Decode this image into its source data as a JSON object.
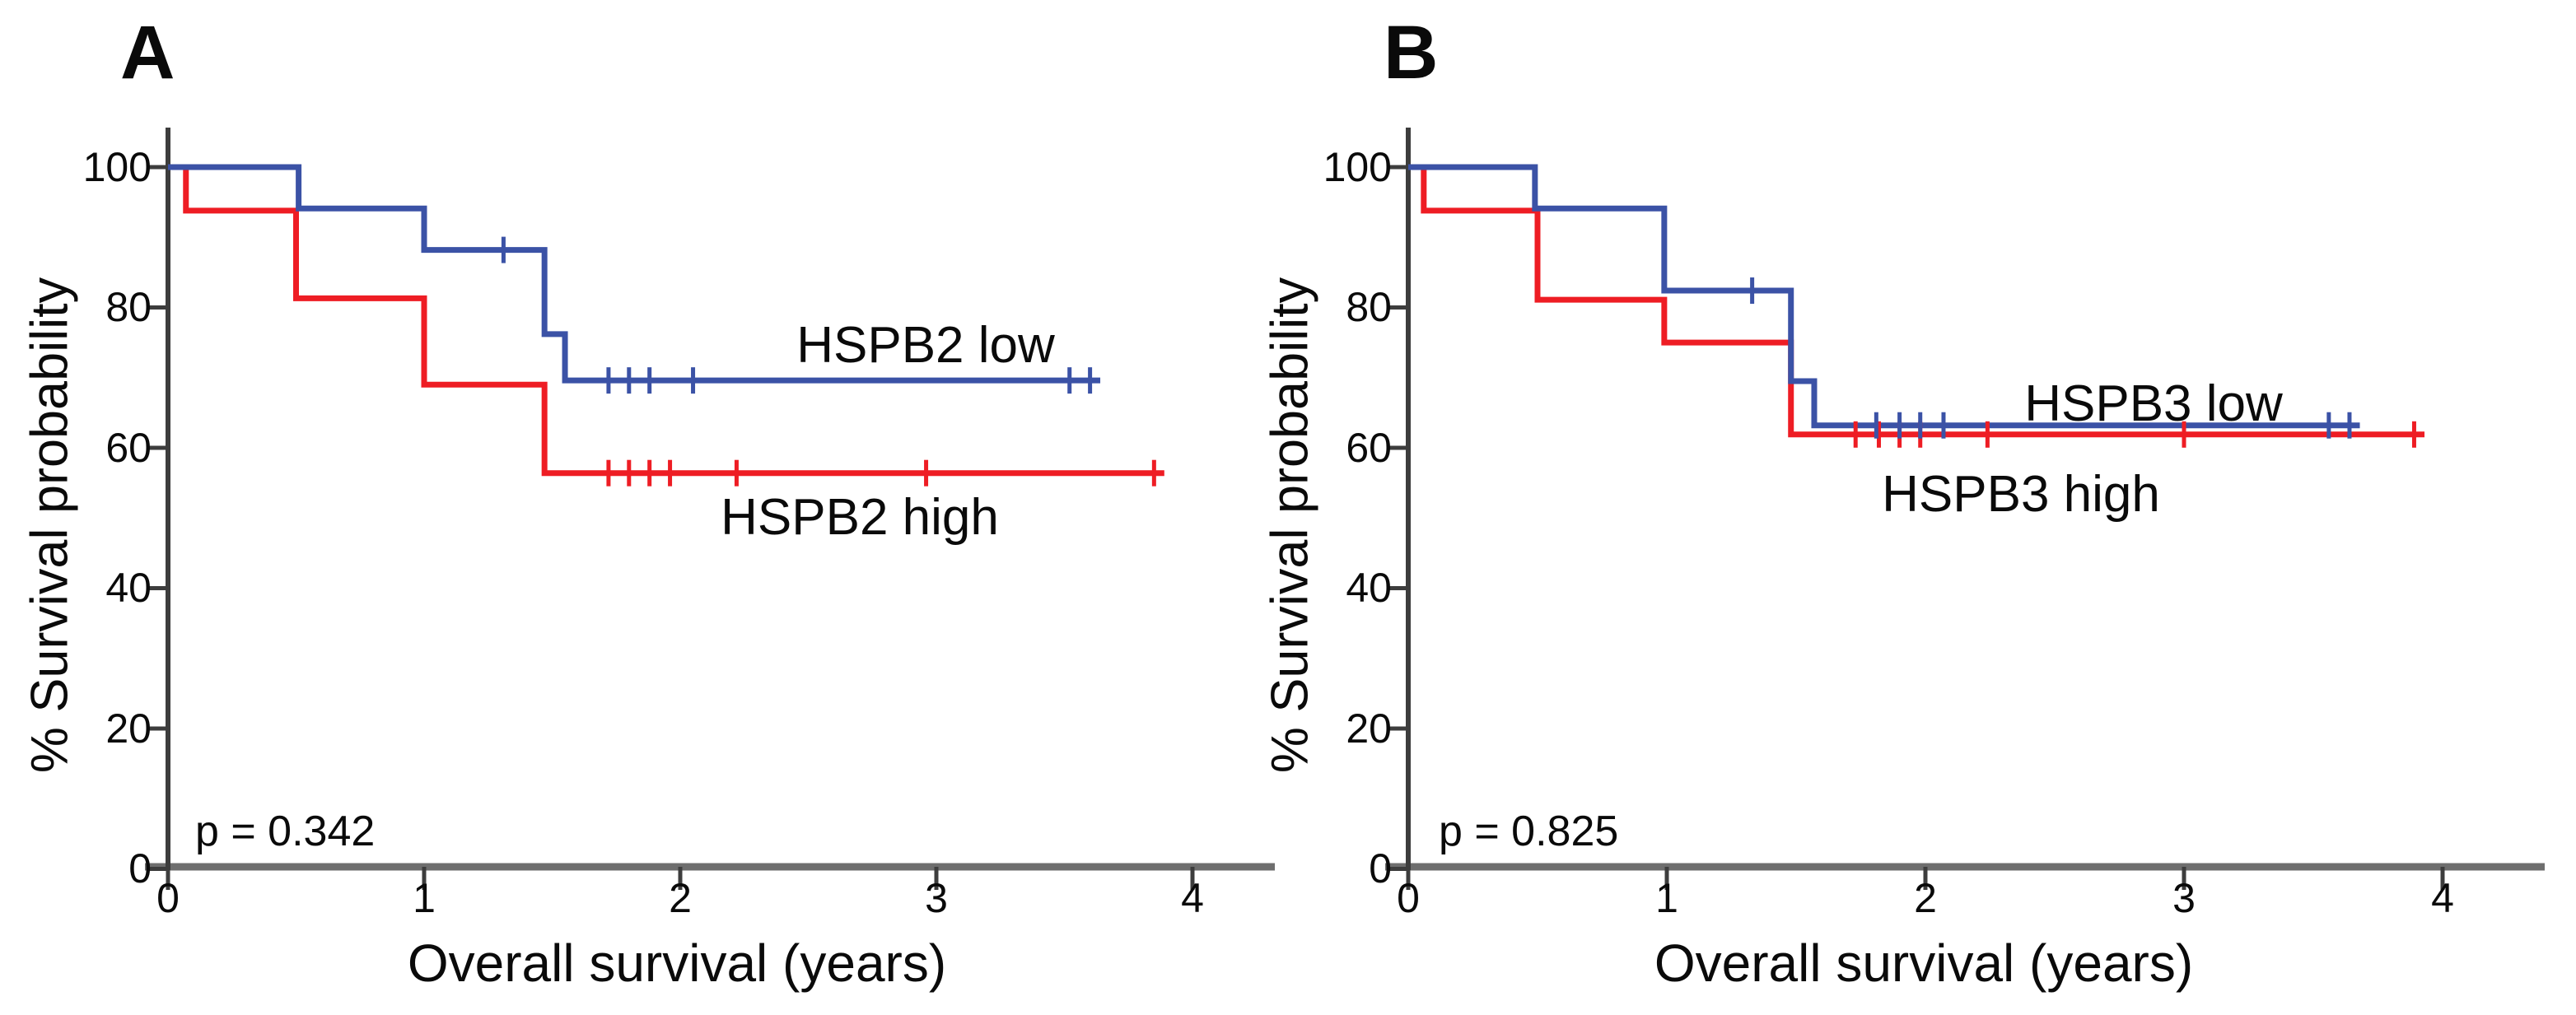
{
  "figure": {
    "background": "#ffffff",
    "accent_colors": {
      "low_group_blue": "#3b52a6",
      "high_group_red": "#ee1d24",
      "axis_dark": "#3d3d3d",
      "axis_baseline_gray": "#6e6e6e"
    }
  },
  "chart_data": [
    {
      "type": "line",
      "subtype": "kaplan_meier_step",
      "title": "A",
      "xlabel": "Overall survival (years)",
      "ylabel": "% Survival probability",
      "xlim": [
        0,
        4.35
      ],
      "ylim": [
        0,
        100
      ],
      "grid": false,
      "legend_position": "inline-annotations",
      "x_ticks": [
        0,
        1,
        2,
        3,
        4
      ],
      "x_tick_labels": [
        "0",
        "1",
        "2",
        "3",
        "4"
      ],
      "y_ticks": [
        100,
        80,
        60,
        40,
        20,
        0
      ],
      "y_tick_labels": [
        "100",
        "80",
        "60",
        "40",
        "20",
        "0"
      ],
      "p_value_label": "p = 0.342",
      "series": [
        {
          "name": "HSPB2 low",
          "color": "#3b52a6",
          "steps": [
            [
              0,
              100
            ],
            [
              0.51,
              94.1
            ],
            [
              1.0,
              88.2
            ],
            [
              1.47,
              76.2
            ],
            [
              1.55,
              69.6
            ]
          ],
          "end_x": 3.64,
          "censor_marks": [
            [
              1.31,
              88.2
            ],
            [
              1.72,
              69.6
            ],
            [
              1.8,
              69.6
            ],
            [
              1.88,
              69.6
            ],
            [
              2.05,
              69.6
            ],
            [
              3.52,
              69.6
            ],
            [
              3.6,
              69.6
            ]
          ]
        },
        {
          "name": "HSPB2 high",
          "color": "#ee1d24",
          "steps": [
            [
              0,
              100
            ],
            [
              0.07,
              93.8
            ],
            [
              0.5,
              81.3
            ],
            [
              1.0,
              69.0
            ],
            [
              1.47,
              56.4
            ]
          ],
          "end_x": 3.89,
          "censor_marks": [
            [
              1.72,
              56.4
            ],
            [
              1.8,
              56.4
            ],
            [
              1.88,
              56.4
            ],
            [
              1.96,
              56.4
            ],
            [
              2.22,
              56.4
            ],
            [
              2.96,
              56.4
            ],
            [
              3.85,
              56.4
            ]
          ]
        }
      ]
    },
    {
      "type": "line",
      "subtype": "kaplan_meier_step",
      "title": "B",
      "xlabel": "Overall survival (years)",
      "ylabel": "% Survival probability",
      "xlim": [
        0,
        4.35
      ],
      "ylim": [
        0,
        100
      ],
      "grid": false,
      "legend_position": "inline-annotations",
      "x_ticks": [
        0,
        1,
        2,
        3,
        4
      ],
      "x_tick_labels": [
        "0",
        "1",
        "2",
        "3",
        "4"
      ],
      "y_ticks": [
        100,
        80,
        60,
        40,
        20,
        0
      ],
      "y_tick_labels": [
        "100",
        "80",
        "60",
        "40",
        "20",
        "0"
      ],
      "p_value_label": "p = 0.825",
      "series": [
        {
          "name": "HSPB3 low",
          "color": "#3b52a6",
          "steps": [
            [
              0,
              100
            ],
            [
              0.49,
              94.1
            ],
            [
              0.99,
              82.4
            ],
            [
              1.48,
              69.5
            ],
            [
              1.57,
              63.2
            ]
          ],
          "end_x": 3.68,
          "censor_marks": [
            [
              1.33,
              82.4
            ],
            [
              1.81,
              63.2
            ],
            [
              1.9,
              63.2
            ],
            [
              1.98,
              63.2
            ],
            [
              2.07,
              63.2
            ],
            [
              3.56,
              63.2
            ],
            [
              3.64,
              63.2
            ]
          ]
        },
        {
          "name": "HSPB3 high",
          "color": "#ee1d24",
          "steps": [
            [
              0,
              100
            ],
            [
              0.06,
              93.8
            ],
            [
              0.5,
              81.1
            ],
            [
              0.99,
              75.0
            ],
            [
              1.48,
              61.9
            ]
          ],
          "end_x": 3.93,
          "censor_marks": [
            [
              1.73,
              61.9
            ],
            [
              1.82,
              61.9
            ],
            [
              1.9,
              61.9
            ],
            [
              1.98,
              61.9
            ],
            [
              2.24,
              61.9
            ],
            [
              3.0,
              61.9
            ],
            [
              3.89,
              61.9
            ]
          ]
        }
      ]
    }
  ]
}
